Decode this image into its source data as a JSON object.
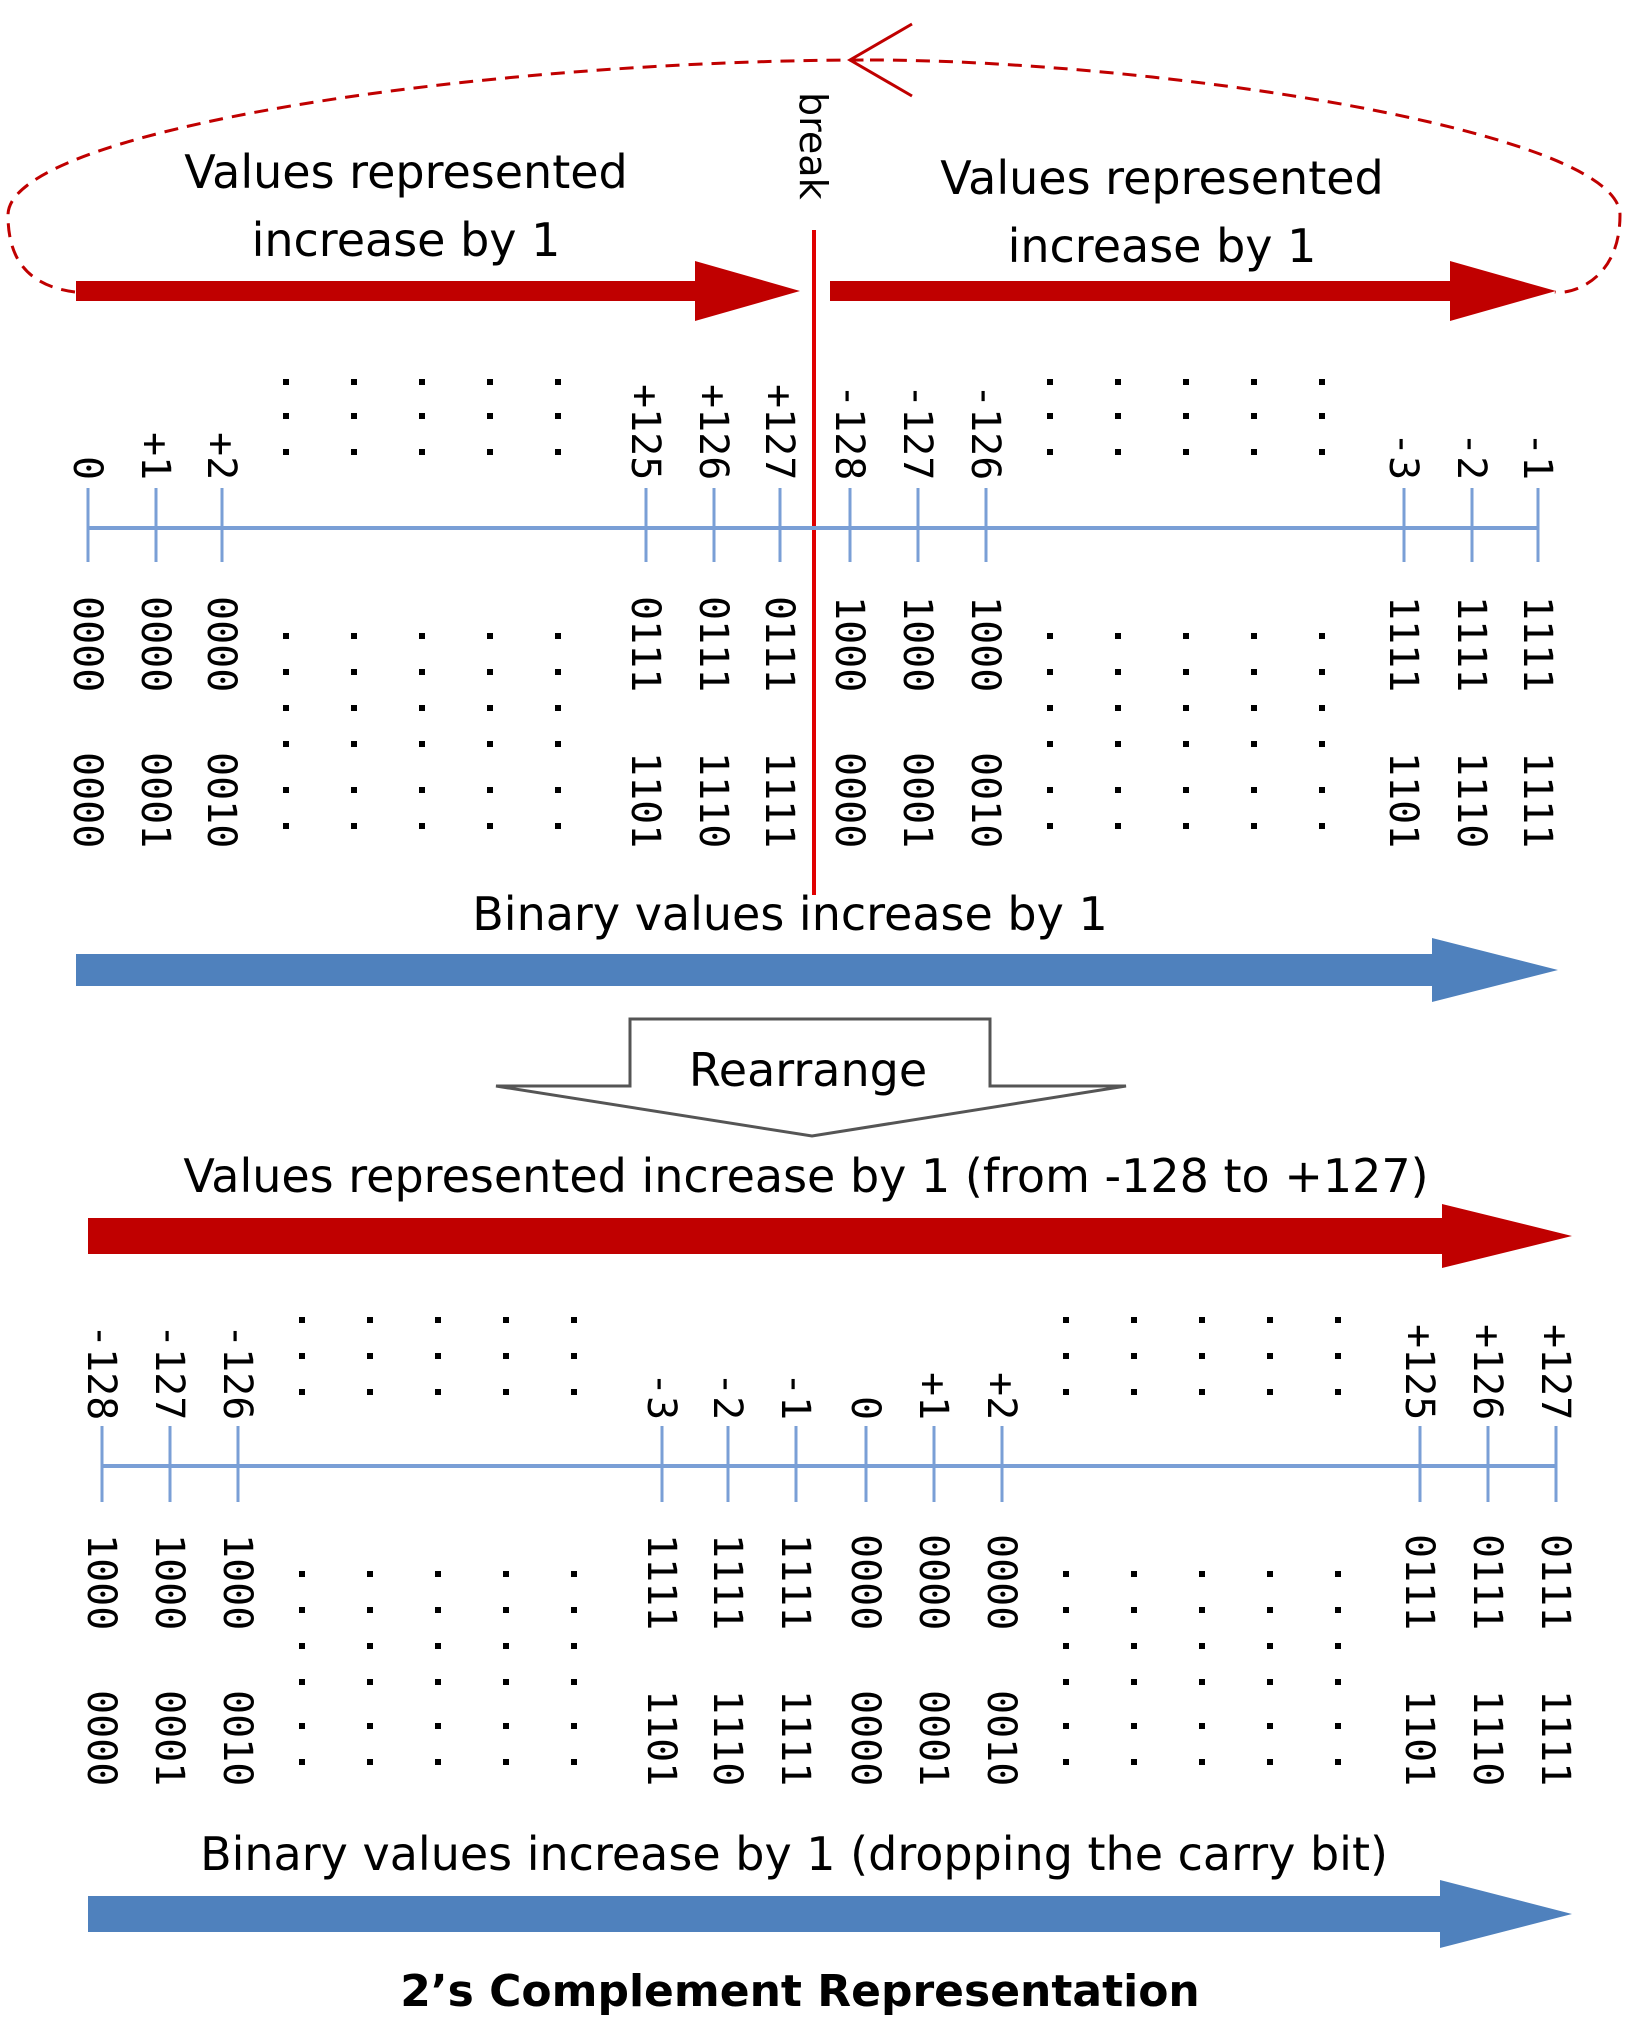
{
  "colors": {
    "red": "#c00000",
    "blue": "#4f81bd",
    "line": "#7a9fd6",
    "dark": "#000000"
  },
  "top": {
    "label_left_line1": "Values represented",
    "label_left_line2": "increase by 1",
    "label_right_line1": "Values represented",
    "label_right_line2": "increase by 1",
    "break_label": "break",
    "binary_label": "Binary values  increase by 1",
    "ticks": [
      {
        "value": "0",
        "hi": "0000",
        "lo": "0000"
      },
      {
        "value": "+1",
        "hi": "0000",
        "lo": "0001"
      },
      {
        "value": "+2",
        "hi": "0000",
        "lo": "0010"
      },
      {
        "value": "+125",
        "hi": "0111",
        "lo": "1101"
      },
      {
        "value": "+126",
        "hi": "0111",
        "lo": "1110"
      },
      {
        "value": "+127",
        "hi": "0111",
        "lo": "1111"
      },
      {
        "value": "-128",
        "hi": "1000",
        "lo": "0000"
      },
      {
        "value": "-127",
        "hi": "1000",
        "lo": "0001"
      },
      {
        "value": "-126",
        "hi": "1000",
        "lo": "0010"
      },
      {
        "value": "-3",
        "hi": "1111",
        "lo": "1101"
      },
      {
        "value": "-2",
        "hi": "1111",
        "lo": "1110"
      },
      {
        "value": "-1",
        "hi": "1111",
        "lo": "1111"
      }
    ]
  },
  "rearrange_label": "Rearrange",
  "bottom": {
    "values_label": "Values represented  increase by 1 (from -128 to +127)",
    "binary_label": "Binary values  increase by 1 (dropping  the carry bit)",
    "ticks": [
      {
        "value": "-128",
        "hi": "1000",
        "lo": "0000"
      },
      {
        "value": "-127",
        "hi": "1000",
        "lo": "0001"
      },
      {
        "value": "-126",
        "hi": "1000",
        "lo": "0010"
      },
      {
        "value": "-3",
        "hi": "1111",
        "lo": "1101"
      },
      {
        "value": "-2",
        "hi": "1111",
        "lo": "1110"
      },
      {
        "value": "-1",
        "hi": "1111",
        "lo": "1111"
      },
      {
        "value": "0",
        "hi": "0000",
        "lo": "0000"
      },
      {
        "value": "+1",
        "hi": "0000",
        "lo": "0001"
      },
      {
        "value": "+2",
        "hi": "0000",
        "lo": "0010"
      },
      {
        "value": "+125",
        "hi": "0111",
        "lo": "1101"
      },
      {
        "value": "+126",
        "hi": "0111",
        "lo": "1110"
      },
      {
        "value": "+127",
        "hi": "0111",
        "lo": "1111"
      }
    ]
  },
  "title": "2’s Complement Representation"
}
